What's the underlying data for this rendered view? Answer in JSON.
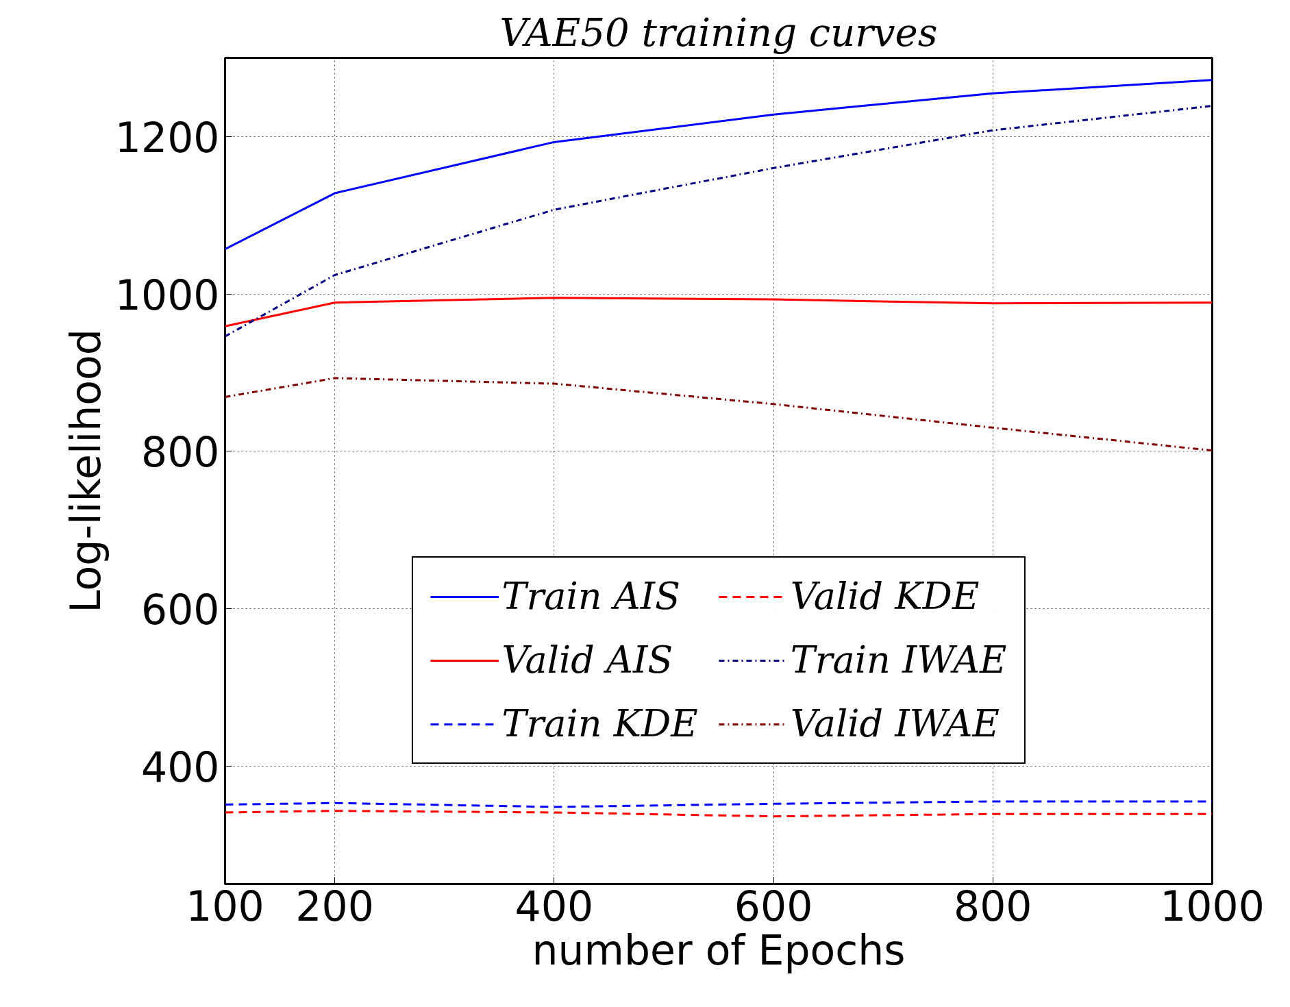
{
  "chart_data": {
    "type": "line",
    "title": "VAE50 training curves",
    "xlabel": "number of Epochs",
    "ylabel": "Log-likelihood",
    "x": [
      100,
      200,
      400,
      600,
      800,
      1000
    ],
    "xlim": [
      100,
      1000
    ],
    "xticks": [
      100,
      200,
      400,
      600,
      800,
      1000
    ],
    "ylim": [
      250,
      1300
    ],
    "yticks": [
      400,
      600,
      800,
      1000,
      1200
    ],
    "grid": true,
    "legend": "bottom",
    "series": [
      {
        "name": "Train AIS",
        "color": "#0000ff",
        "line_style": "solid",
        "values": [
          1057,
          1128,
          1193,
          1228,
          1255,
          1272
        ]
      },
      {
        "name": "Valid AIS",
        "color": "#ff0000",
        "line_style": "solid",
        "values": [
          959,
          989,
          995,
          993,
          988,
          989
        ]
      },
      {
        "name": "Train KDE",
        "color": "#0000ff",
        "line_style": "dashed",
        "values": [
          351,
          353,
          348,
          352,
          355,
          355
        ]
      },
      {
        "name": "Valid KDE",
        "color": "#ff0000",
        "line_style": "dashed",
        "values": [
          341,
          343,
          341,
          336,
          339,
          339
        ]
      },
      {
        "name": "Train IWAE",
        "color": "#000080",
        "line_style": "dashdot",
        "values": [
          946,
          1024,
          1107,
          1160,
          1208,
          1239
        ]
      },
      {
        "name": "Valid IWAE",
        "color": "#800000",
        "line_style": "dashdot",
        "values": [
          869,
          893,
          886,
          860,
          830,
          801
        ]
      }
    ]
  }
}
